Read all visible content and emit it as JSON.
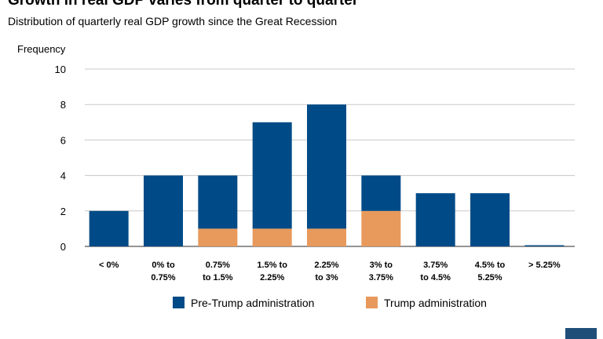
{
  "chart_data": {
    "type": "bar",
    "stacked": true,
    "title": "Growth in real GDP varies from quarter to quarter",
    "subtitle": "Distribution of quarterly real GDP growth since the Great Recession",
    "ylabel": "Frequency",
    "xlabel": "",
    "ylim": [
      0,
      10
    ],
    "yticks": [
      0,
      2,
      4,
      6,
      8,
      10
    ],
    "grid": true,
    "legend_position": "bottom",
    "categories": [
      [
        "< 0%"
      ],
      [
        "0% to",
        "0.75%"
      ],
      [
        "0.75%",
        "to 1.5%"
      ],
      [
        "1.5% to",
        "2.25%"
      ],
      [
        "2.25%",
        "to 3%"
      ],
      [
        "3% to",
        "3.75%"
      ],
      [
        "3.75%",
        "to 4.5%"
      ],
      [
        "4.5% to",
        "5.25%"
      ],
      [
        "> 5.25%"
      ]
    ],
    "series": [
      {
        "name": "Trump administration",
        "color": "#e8995c",
        "values": [
          0,
          0,
          1,
          1,
          1,
          2,
          0,
          0,
          0
        ]
      },
      {
        "name": "Pre-Trump administration",
        "color": "#004b87",
        "values": [
          2,
          4,
          3,
          6,
          7,
          2,
          3,
          3,
          0
        ]
      }
    ],
    "legend": [
      {
        "name": "Pre-Trump administration",
        "color": "#004b87"
      },
      {
        "name": "Trump administration",
        "color": "#e8995c"
      }
    ]
  }
}
